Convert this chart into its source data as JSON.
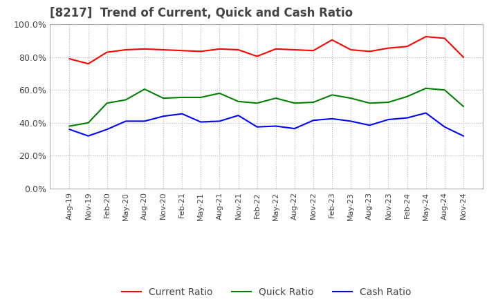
{
  "title": "[8217]  Trend of Current, Quick and Cash Ratio",
  "x_labels": [
    "Aug-19",
    "Nov-19",
    "Feb-20",
    "May-20",
    "Aug-20",
    "Nov-20",
    "Feb-21",
    "May-21",
    "Aug-21",
    "Nov-21",
    "Feb-22",
    "May-22",
    "Aug-22",
    "Nov-22",
    "Feb-23",
    "May-23",
    "Aug-23",
    "Nov-23",
    "Feb-24",
    "May-24",
    "Aug-24",
    "Nov-24"
  ],
  "current_ratio": [
    79.0,
    76.0,
    83.0,
    84.5,
    85.0,
    84.5,
    84.0,
    83.5,
    85.0,
    84.5,
    80.5,
    85.0,
    84.5,
    84.0,
    90.5,
    84.5,
    83.5,
    85.5,
    86.5,
    92.5,
    91.5,
    80.0
  ],
  "quick_ratio": [
    38.0,
    40.0,
    52.0,
    54.0,
    60.5,
    55.0,
    55.5,
    55.5,
    58.0,
    53.0,
    52.0,
    55.0,
    52.0,
    52.5,
    57.0,
    55.0,
    52.0,
    52.5,
    56.0,
    61.0,
    60.0,
    50.0
  ],
  "cash_ratio": [
    36.0,
    32.0,
    36.0,
    41.0,
    41.0,
    44.0,
    45.5,
    40.5,
    41.0,
    44.5,
    37.5,
    38.0,
    36.5,
    41.5,
    42.5,
    41.0,
    38.5,
    42.0,
    43.0,
    46.0,
    37.5,
    32.0
  ],
  "current_color": "#ff0000",
  "quick_color": "#008000",
  "cash_color": "#0000ff",
  "ylim": [
    0,
    100
  ],
  "yticks": [
    0,
    20,
    40,
    60,
    80,
    100
  ],
  "background_color": "#ffffff",
  "grid_color": "#b0b0b0",
  "spine_color": "#aaaaaa",
  "title_color": "#444444",
  "tick_label_color": "#444444"
}
